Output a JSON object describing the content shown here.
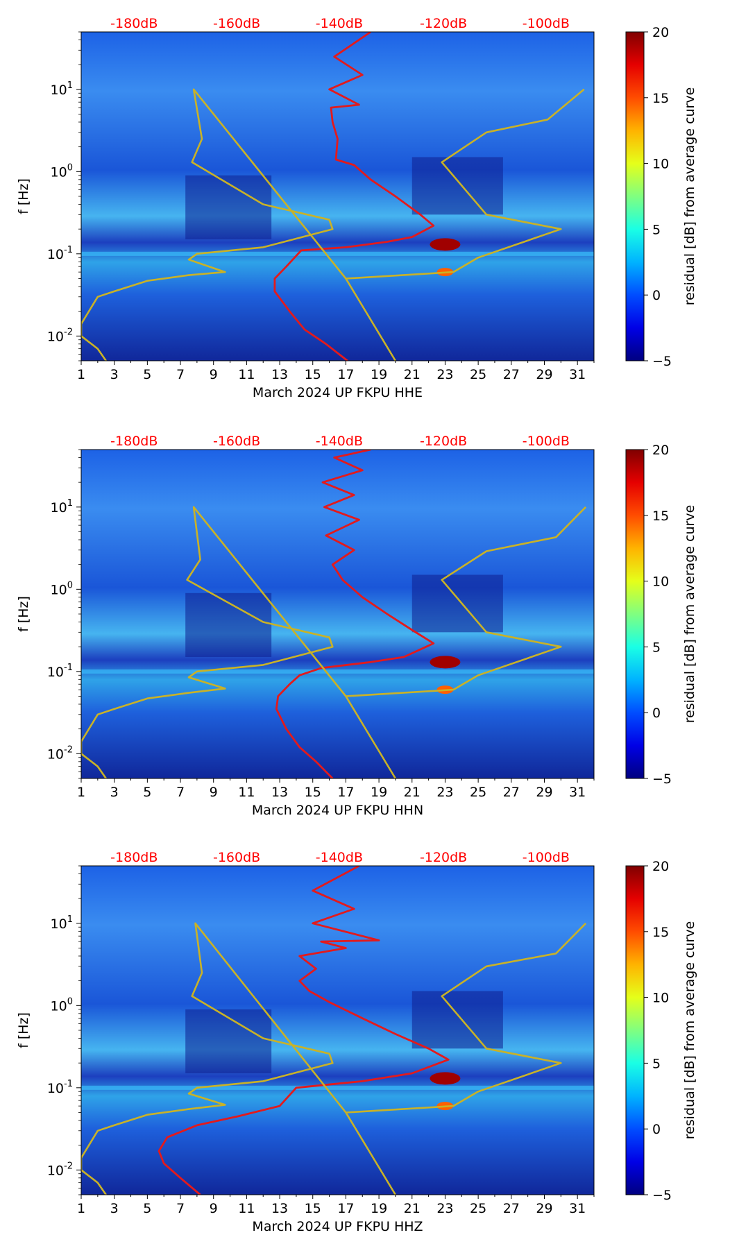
{
  "figure": {
    "colorbar_label": "residual [dB] from average curve",
    "colors": {
      "psd_curve": "#e31a1c",
      "percentile_curve": "#c9b227",
      "db_label": "#ff0000",
      "axis": "#000000"
    }
  },
  "chart_data": [
    {
      "type": "heatmap",
      "title": "",
      "xlabel": "March 2024 UP FKPU  HHE",
      "ylabel": "f [Hz]",
      "x_tick_labels": [
        "1",
        "3",
        "5",
        "7",
        "9",
        "11",
        "13",
        "15",
        "17",
        "19",
        "21",
        "23",
        "25",
        "27",
        "29",
        "31"
      ],
      "x_tick_values": [
        1,
        3,
        5,
        7,
        9,
        11,
        13,
        15,
        17,
        19,
        21,
        23,
        25,
        27,
        29,
        31
      ],
      "xlim": [
        1,
        32
      ],
      "y_scale": "log",
      "ylim": [
        0.005,
        50
      ],
      "y_tick_labels": [
        "10^-2",
        "10^-1",
        "10^0",
        "10^1"
      ],
      "y_tick_values": [
        0.01,
        0.1,
        1,
        10
      ],
      "top_db_labels": [
        "-180dB",
        "-160dB",
        "-140dB",
        "-120dB",
        "-100dB"
      ],
      "top_db_day_positions": [
        4.2,
        10.4,
        16.6,
        22.9,
        29.1
      ],
      "colorbar": {
        "label": "residual [dB] from average curve",
        "range": [
          -5,
          20
        ],
        "ticks": [
          "−5",
          "0",
          "5",
          "10",
          "15",
          "20"
        ],
        "tick_values": [
          -5,
          0,
          5,
          10,
          15,
          20
        ],
        "colormap": "jet"
      },
      "series": [
        {
          "name": "PSD curve (red)",
          "x_day": [
            17.1,
            15.8,
            14.5,
            13.6,
            12.7,
            12.7,
            13.4,
            13.9,
            14.3,
            17.0,
            19.5,
            21.0,
            22.3,
            21.5,
            20.0,
            18.5,
            17.5,
            16.4,
            16.5,
            16.2,
            16.1,
            17.8,
            16.0,
            18.0,
            16.3,
            18.5
          ],
          "f": [
            0.005,
            0.008,
            0.012,
            0.02,
            0.035,
            0.05,
            0.07,
            0.09,
            0.11,
            0.12,
            0.14,
            0.16,
            0.22,
            0.3,
            0.5,
            0.8,
            1.2,
            1.4,
            2.5,
            4,
            6,
            6.5,
            10,
            15,
            25,
            50
          ]
        },
        {
          "name": "percentile curve (gold)",
          "x_day": [
            2.5,
            2.0,
            1.0,
            1.0,
            2.0,
            3.0,
            5.0,
            7.5,
            9.7,
            7.5,
            8.0,
            12.0,
            16.2,
            16.0,
            12.0,
            7.7,
            8.3,
            7.8,
            17.0,
            20.0,
            17.0,
            23.5,
            25.0,
            30.0,
            25.5,
            22.8,
            25.5,
            29.2,
            31.4
          ],
          "f": [
            0.005,
            0.007,
            0.01,
            0.014,
            0.03,
            0.035,
            0.047,
            0.055,
            0.06,
            0.085,
            0.1,
            0.12,
            0.2,
            0.26,
            0.4,
            1.3,
            2.5,
            10,
            0.05,
            0.005,
            0.05,
            0.06,
            0.09,
            0.2,
            0.3,
            1.3,
            3.0,
            4.3,
            10
          ]
        }
      ]
    },
    {
      "type": "heatmap",
      "title": "",
      "xlabel": "March 2024 UP FKPU  HHN",
      "ylabel": "f [Hz]",
      "x_tick_labels": [
        "1",
        "3",
        "5",
        "7",
        "9",
        "11",
        "13",
        "15",
        "17",
        "19",
        "21",
        "23",
        "25",
        "27",
        "29",
        "31"
      ],
      "x_tick_values": [
        1,
        3,
        5,
        7,
        9,
        11,
        13,
        15,
        17,
        19,
        21,
        23,
        25,
        27,
        29,
        31
      ],
      "xlim": [
        1,
        32
      ],
      "y_scale": "log",
      "ylim": [
        0.005,
        50
      ],
      "y_tick_labels": [
        "10^-2",
        "10^-1",
        "10^0",
        "10^1"
      ],
      "y_tick_values": [
        0.01,
        0.1,
        1,
        10
      ],
      "top_db_labels": [
        "-180dB",
        "-160dB",
        "-140dB",
        "-120dB",
        "-100dB"
      ],
      "top_db_day_positions": [
        4.2,
        10.4,
        16.6,
        22.9,
        29.1
      ],
      "colorbar": {
        "label": "residual [dB] from average curve",
        "range": [
          -5,
          20
        ],
        "ticks": [
          "−5",
          "0",
          "5",
          "10",
          "15",
          "20"
        ],
        "tick_values": [
          -5,
          0,
          5,
          10,
          15,
          20
        ],
        "colormap": "jet"
      },
      "series": [
        {
          "name": "PSD curve (red)",
          "x_day": [
            16.2,
            15.2,
            14.2,
            13.4,
            12.8,
            12.9,
            13.6,
            14.2,
            15.5,
            18.5,
            20.5,
            22.3,
            21.0,
            19.5,
            18.0,
            16.8,
            16.2,
            17.5,
            15.8,
            17.8,
            15.7,
            17.5,
            15.6,
            18.0,
            16.3,
            18.5
          ],
          "f": [
            0.005,
            0.008,
            0.012,
            0.02,
            0.035,
            0.05,
            0.07,
            0.09,
            0.11,
            0.13,
            0.15,
            0.22,
            0.32,
            0.5,
            0.8,
            1.3,
            2.0,
            3.0,
            4.5,
            7,
            10,
            14,
            20,
            28,
            40,
            50
          ]
        },
        {
          "name": "percentile curve (gold)",
          "x_day": [
            2.5,
            2.0,
            1.0,
            1.0,
            2.0,
            3.0,
            5.0,
            7.5,
            9.7,
            7.5,
            8.0,
            12.0,
            16.2,
            16.0,
            12.0,
            7.4,
            8.2,
            7.8,
            17.0,
            20.0,
            17.0,
            23.5,
            25.0,
            30.0,
            25.5,
            22.8,
            25.5,
            29.7,
            31.5
          ],
          "f": [
            0.005,
            0.007,
            0.01,
            0.014,
            0.03,
            0.035,
            0.047,
            0.055,
            0.062,
            0.085,
            0.1,
            0.12,
            0.2,
            0.26,
            0.4,
            1.3,
            2.3,
            10,
            0.05,
            0.005,
            0.05,
            0.06,
            0.09,
            0.2,
            0.3,
            1.3,
            2.9,
            4.3,
            10
          ]
        }
      ]
    },
    {
      "type": "heatmap",
      "title": "",
      "xlabel": "March 2024 UP FKPU  HHZ",
      "ylabel": "f [Hz]",
      "x_tick_labels": [
        "1",
        "3",
        "5",
        "7",
        "9",
        "11",
        "13",
        "15",
        "17",
        "19",
        "21",
        "23",
        "25",
        "27",
        "29",
        "31"
      ],
      "x_tick_values": [
        1,
        3,
        5,
        7,
        9,
        11,
        13,
        15,
        17,
        19,
        21,
        23,
        25,
        27,
        29,
        31
      ],
      "xlim": [
        1,
        32
      ],
      "y_scale": "log",
      "ylim": [
        0.005,
        50
      ],
      "y_tick_labels": [
        "10^-2",
        "10^-1",
        "10^0",
        "10^1"
      ],
      "y_tick_values": [
        0.01,
        0.1,
        1,
        10
      ],
      "top_db_labels": [
        "-180dB",
        "-160dB",
        "-140dB",
        "-120dB",
        "-100dB"
      ],
      "top_db_day_positions": [
        4.2,
        10.4,
        16.6,
        22.9,
        29.1
      ],
      "colorbar": {
        "label": "residual [dB] from average curve",
        "range": [
          -5,
          20
        ],
        "ticks": [
          "−5",
          "0",
          "5",
          "10",
          "15",
          "20"
        ],
        "tick_values": [
          -5,
          0,
          5,
          10,
          15,
          20
        ],
        "colormap": "jet"
      },
      "series": [
        {
          "name": "PSD curve (red)",
          "x_day": [
            8.2,
            7.0,
            6.0,
            5.7,
            6.2,
            8.0,
            10.5,
            13.0,
            14.0,
            18.0,
            21.0,
            23.2,
            22.0,
            20.0,
            18.0,
            16.0,
            14.8,
            14.2,
            15.2,
            14.2,
            17.0,
            15.5,
            19.0,
            15.0,
            17.5,
            15.0,
            17.8
          ],
          "f": [
            0.005,
            0.008,
            0.012,
            0.017,
            0.025,
            0.035,
            0.045,
            0.06,
            0.1,
            0.12,
            0.15,
            0.22,
            0.3,
            0.45,
            0.7,
            1.1,
            1.5,
            2.0,
            2.8,
            4,
            5,
            6,
            6.2,
            10,
            15,
            25,
            50
          ]
        },
        {
          "name": "percentile curve (gold)",
          "x_day": [
            2.5,
            2.0,
            1.0,
            1.0,
            2.0,
            3.0,
            5.0,
            7.5,
            9.7,
            7.5,
            8.0,
            12.0,
            16.2,
            16.0,
            12.0,
            7.7,
            8.3,
            7.9,
            17.0,
            20.0,
            17.0,
            23.5,
            25.0,
            30.0,
            25.5,
            22.8,
            25.5,
            29.7,
            31.5
          ],
          "f": [
            0.005,
            0.007,
            0.01,
            0.014,
            0.03,
            0.035,
            0.047,
            0.055,
            0.062,
            0.085,
            0.1,
            0.12,
            0.2,
            0.26,
            0.4,
            1.3,
            2.5,
            10,
            0.05,
            0.005,
            0.05,
            0.06,
            0.09,
            0.2,
            0.3,
            1.3,
            3.0,
            4.3,
            10
          ]
        }
      ]
    }
  ]
}
